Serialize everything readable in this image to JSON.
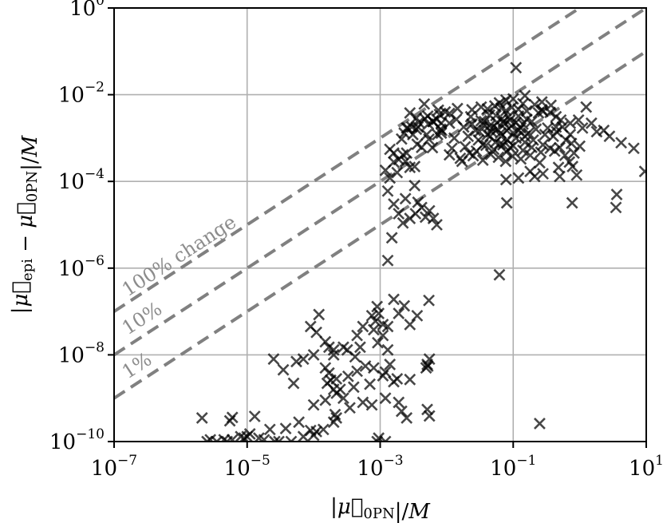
{
  "chart_data": {
    "type": "scatter",
    "x_scale": "log",
    "y_scale": "log",
    "xlim": [
      1e-07,
      10
    ],
    "ylim": [
      1e-10,
      1
    ],
    "grid": true,
    "marker": "x",
    "marker_color": "#000000",
    "reference_line_color": "#808080",
    "grid_color": "#b0b0b0",
    "xlabel": "|μ⃗0PN|/M",
    "ylabel": "|μ⃗epi − μ⃗0PN|/M",
    "x_ticks": [
      {
        "value": 1e-07,
        "base": "10",
        "exp": "−7"
      },
      {
        "value": 1e-05,
        "base": "10",
        "exp": "−5"
      },
      {
        "value": 0.001,
        "base": "10",
        "exp": "−3"
      },
      {
        "value": 0.1,
        "base": "10",
        "exp": "−1"
      },
      {
        "value": 10,
        "base": "10",
        "exp": "1"
      }
    ],
    "y_ticks": [
      {
        "value": 1e-10,
        "base": "10",
        "exp": "−10"
      },
      {
        "value": 1e-08,
        "base": "10",
        "exp": "−8"
      },
      {
        "value": 1e-06,
        "base": "10",
        "exp": "−6"
      },
      {
        "value": 0.0001,
        "base": "10",
        "exp": "−4"
      },
      {
        "value": 0.01,
        "base": "10",
        "exp": "−2"
      },
      {
        "value": 1,
        "base": "10",
        "exp": "0"
      }
    ],
    "reference_lines": [
      {
        "ratio": 1.0,
        "label": "100% change"
      },
      {
        "ratio": 0.1,
        "label": "10%"
      },
      {
        "ratio": 0.01,
        "label": "1%"
      }
    ],
    "points": [
      [
        0.0035,
        0.0029
      ],
      [
        0.0052,
        0.0032
      ],
      [
        0.0078,
        0.0035
      ],
      [
        0.0046,
        0.0061
      ],
      [
        0.0075,
        0.0044
      ],
      [
        0.0042,
        0.00061
      ],
      [
        0.0061,
        0.0006
      ],
      [
        0.0028,
        0.0038
      ],
      [
        0.003,
        0.0018
      ],
      [
        0.0053,
        0.0021
      ],
      [
        0.0036,
        0.00072
      ],
      [
        0.0021,
        0.00095
      ],
      [
        0.0031,
        0.0012
      ],
      [
        0.005,
        0.0012
      ],
      [
        0.0083,
        0.0013
      ],
      [
        0.0054,
        0.00094
      ],
      [
        0.0038,
        0.0023
      ],
      [
        0.0062,
        0.0024
      ],
      [
        0.0026,
        0.0017
      ],
      [
        0.0083,
        0.0022
      ],
      [
        0.0037,
        0.0018
      ],
      [
        0.0084,
        0.0015
      ],
      [
        0.0023,
        0.0013
      ],
      [
        0.0073,
        0.0012
      ],
      [
        0.0025,
        0.0017
      ],
      [
        0.0081,
        0.0016
      ],
      [
        0.0035,
        0.0016
      ],
      [
        0.0063,
        0.0024
      ],
      [
        0.0047,
        0.0028
      ],
      [
        0.0071,
        0.0027
      ],
      [
        0.0016,
        0.00028
      ],
      [
        0.0012,
        0.00018
      ],
      [
        0.0016,
        0.00045
      ],
      [
        0.0024,
        0.00029
      ],
      [
        0.0019,
        0.00032
      ],
      [
        0.0022,
        0.00041
      ],
      [
        0.0033,
        0.00022
      ],
      [
        0.0025,
        0.00045
      ],
      [
        0.0014,
        0.00055
      ],
      [
        0.0028,
        0.00021
      ],
      [
        0.014,
        0.0027
      ],
      [
        0.023,
        0.0031
      ],
      [
        0.033,
        0.0025
      ],
      [
        0.044,
        0.0034
      ],
      [
        0.055,
        0.0033
      ],
      [
        0.068,
        0.0028
      ],
      [
        0.085,
        0.0031
      ],
      [
        0.12,
        0.0032
      ],
      [
        0.16,
        0.0027
      ],
      [
        0.19,
        0.0024
      ],
      [
        0.011,
        0.0022
      ],
      [
        0.018,
        0.0018
      ],
      [
        0.027,
        0.0015
      ],
      [
        0.036,
        0.002
      ],
      [
        0.047,
        0.0014
      ],
      [
        0.058,
        0.0016
      ],
      [
        0.074,
        0.0021
      ],
      [
        0.094,
        0.0019
      ],
      [
        0.13,
        0.0017
      ],
      [
        0.17,
        0.0013
      ],
      [
        0.22,
        0.0016
      ],
      [
        0.3,
        0.0012
      ],
      [
        0.013,
        0.001
      ],
      [
        0.021,
        0.0011
      ],
      [
        0.03,
        0.0009
      ],
      [
        0.041,
        0.0012
      ],
      [
        0.054,
        0.0008
      ],
      [
        0.066,
        0.0011
      ],
      [
        0.082,
        0.0009
      ],
      [
        0.11,
        0.001
      ],
      [
        0.15,
        0.0008
      ],
      [
        0.2,
        0.0009
      ],
      [
        0.28,
        0.0007
      ],
      [
        0.4,
        0.0011
      ],
      [
        0.012,
        0.00058
      ],
      [
        0.019,
        0.00063
      ],
      [
        0.028,
        0.0005
      ],
      [
        0.039,
        0.00068
      ],
      [
        0.051,
        0.00055
      ],
      [
        0.063,
        0.00072
      ],
      [
        0.079,
        0.00048
      ],
      [
        0.1,
        0.00066
      ],
      [
        0.14,
        0.00052
      ],
      [
        0.19,
        0.00061
      ],
      [
        0.26,
        0.00047
      ],
      [
        0.36,
        0.00058
      ],
      [
        0.016,
        0.00034
      ],
      [
        0.025,
        0.00039
      ],
      [
        0.035,
        0.00031
      ],
      [
        0.046,
        0.00042
      ],
      [
        0.06,
        0.00036
      ],
      [
        0.077,
        0.00029
      ],
      [
        0.098,
        0.00038
      ],
      [
        0.13,
        0.00033
      ],
      [
        0.18,
        0.0004
      ],
      [
        0.25,
        0.00027
      ],
      [
        0.011,
        0.00041
      ],
      [
        0.017,
        0.00029
      ],
      [
        0.022,
        0.00045
      ],
      [
        0.031,
        0.0014
      ],
      [
        0.044,
        0.0019
      ],
      [
        0.057,
        0.0023
      ],
      [
        0.071,
        0.0024
      ],
      [
        0.089,
        0.0026
      ],
      [
        0.11,
        0.0023
      ],
      [
        0.14,
        0.0021
      ],
      [
        0.024,
        0.0021
      ],
      [
        0.037,
        0.0024
      ],
      [
        0.05,
        0.0018
      ],
      [
        0.065,
        0.0013
      ],
      [
        0.08,
        0.0015
      ],
      [
        0.1,
        0.0013
      ],
      [
        0.12,
        0.0015
      ],
      [
        0.15,
        0.0011
      ],
      [
        0.045,
        0.0011
      ],
      [
        0.07,
        0.0007
      ],
      [
        0.09,
        0.0006
      ],
      [
        0.035,
        0.0007
      ],
      [
        0.33,
        0.0017
      ],
      [
        0.45,
        0.0014
      ],
      [
        0.55,
        0.0018
      ],
      [
        0.62,
        0.0009
      ],
      [
        0.72,
        0.0012
      ],
      [
        0.5,
        0.0006
      ],
      [
        0.6,
        0.0004
      ],
      [
        0.42,
        0.0005
      ],
      [
        0.7,
        0.00028
      ],
      [
        0.78,
        0.00022
      ],
      [
        0.48,
        0.00021
      ],
      [
        0.0095,
        0.004
      ],
      [
        0.0145,
        0.0048
      ],
      [
        0.024,
        0.0045
      ],
      [
        0.033,
        0.0052
      ],
      [
        0.041,
        0.0047
      ],
      [
        0.053,
        0.0055
      ],
      [
        0.066,
        0.0049
      ],
      [
        0.078,
        0.0043
      ],
      [
        0.095,
        0.0051
      ],
      [
        0.12,
        0.0046
      ],
      [
        0.16,
        0.0042
      ],
      [
        0.011,
        0.0037
      ],
      [
        0.062,
        0.0065
      ],
      [
        0.078,
        0.0075
      ],
      [
        0.14,
        0.0062
      ],
      [
        0.1,
        0.008
      ],
      [
        0.21,
        0.0059
      ],
      [
        0.37,
        0.0057
      ],
      [
        0.11,
        0.042
      ],
      [
        0.15,
        0.0095
      ],
      [
        0.27,
        0.0068
      ],
      [
        0.36,
        0.0039
      ],
      [
        0.44,
        0.0031
      ],
      [
        0.27,
        0.0045
      ],
      [
        0.24,
        0.0038
      ],
      [
        0.28,
        0.0041
      ],
      [
        0.52,
        0.0026
      ],
      [
        0.44,
        0.0018
      ],
      [
        0.72,
        0.0022
      ],
      [
        0.96,
        0.0026
      ],
      [
        1.25,
        0.0052
      ],
      [
        1.1,
        0.0017
      ],
      [
        1.5,
        0.0022
      ],
      [
        1.8,
        0.0014
      ],
      [
        2.3,
        0.0015
      ],
      [
        2.8,
        0.0011
      ],
      [
        4.2,
        0.00078
      ],
      [
        6.5,
        0.00058
      ],
      [
        9.5,
        0.00017
      ],
      [
        0.75,
        0.00075
      ],
      [
        1.0,
        0.00065
      ],
      [
        0.82,
        0.00045
      ],
      [
        0.9,
        0.00014
      ],
      [
        3.6,
        5e-05
      ],
      [
        3.5,
        2.5e-05
      ],
      [
        0.77,
        3.2e-05
      ],
      [
        0.18,
        0.00017
      ],
      [
        0.21,
        0.00013
      ],
      [
        0.28,
        0.00015
      ],
      [
        0.12,
        0.00012
      ],
      [
        0.078,
        0.00011
      ],
      [
        0.5,
        0.00013
      ],
      [
        0.08,
        3.2e-05
      ],
      [
        0.062,
        7e-07
      ],
      [
        0.25,
        2.6e-10
      ],
      [
        0.0013,
        6e-05
      ],
      [
        0.0016,
        3e-05
      ],
      [
        0.0015,
        5e-06
      ],
      [
        0.0013,
        1.5e-06
      ],
      [
        0.0019,
        1.8e-05
      ],
      [
        0.0022,
        1.1e-05
      ],
      [
        0.0024,
        4e-05
      ],
      [
        0.0028,
        1.4e-05
      ],
      [
        0.0033,
        8e-05
      ],
      [
        0.0034,
        1.8e-05
      ],
      [
        0.0037,
        3.3e-05
      ],
      [
        0.0042,
        2.5e-05
      ],
      [
        0.0048,
        1.5e-05
      ],
      [
        0.0055,
        2.1e-05
      ],
      [
        0.0063,
        1.4e-05
      ],
      [
        0.0071,
        1e-05
      ],
      [
        0.0014,
        0.00012
      ],
      [
        0.0018,
        0.00016
      ],
      [
        0.0009,
        1.3e-07
      ],
      [
        0.00095,
        9e-08
      ],
      [
        0.0011,
        5e-08
      ],
      [
        0.00085,
        6e-08
      ],
      [
        0.00075,
        8e-08
      ],
      [
        0.0008,
        3.8e-08
      ],
      [
        0.0011,
        2.8e-08
      ],
      [
        0.00092,
        1.9e-08
      ],
      [
        0.0013,
        4.5e-08
      ],
      [
        0.0016,
        1.9e-07
      ],
      [
        0.0019,
        9e-08
      ],
      [
        0.0023,
        1.35e-07
      ],
      [
        0.0028,
        5e-08
      ],
      [
        0.0036,
        8e-08
      ],
      [
        0.0054,
        1.8e-07
      ],
      [
        0.0013,
        1.3e-08
      ],
      [
        0.0014,
        6e-09
      ],
      [
        0.0012,
        4e-09
      ],
      [
        0.00055,
        4.5e-08
      ],
      [
        0.00045,
        2.8e-08
      ],
      [
        0.0005,
        1.5e-08
      ],
      [
        0.00032,
        1.3e-08
      ],
      [
        0.00012,
        8.5e-08
      ],
      [
        9e-05,
        4.5e-08
      ],
      [
        0.00011,
        3.3e-08
      ],
      [
        0.00015,
        2e-08
      ],
      [
        0.0001,
        1e-08
      ],
      [
        0.00015,
        5e-09
      ],
      [
        0.0002,
        1.3e-08
      ],
      [
        0.00028,
        1.5e-08
      ],
      [
        0.00042,
        9e-09
      ],
      [
        0.00017,
        1.5e-08
      ],
      [
        7e-05,
        8e-09
      ],
      [
        0.0002,
        1e-08
      ],
      [
        2.5e-05,
        8e-09
      ],
      [
        5.5e-05,
        7e-09
      ],
      [
        3.5e-05,
        4.5e-09
      ],
      [
        5e-05,
        2.2e-09
      ],
      [
        0.00017,
        3.8e-09
      ],
      [
        0.00022,
        2.8e-09
      ],
      [
        0.00033,
        3.2e-09
      ],
      [
        0.00045,
        4.2e-09
      ],
      [
        0.0006,
        5.5e-09
      ],
      [
        0.0008,
        5e-09
      ],
      [
        0.0011,
        3.3e-09
      ],
      [
        0.0016,
        2.4e-09
      ],
      [
        0.00016,
        2.2e-09
      ],
      [
        0.00018,
        2.6e-09
      ],
      [
        0.0002,
        1.6e-09
      ],
      [
        0.00025,
        1.6e-09
      ],
      [
        0.0004,
        1.8e-09
      ],
      [
        0.0007,
        2.1e-09
      ],
      [
        0.0018,
        2.8e-09
      ],
      [
        0.0028,
        2.7e-09
      ],
      [
        0.0052,
        5.5e-09
      ],
      [
        0.0055,
        8e-09
      ],
      [
        0.0051,
        6e-09
      ],
      [
        0.0049,
        5e-09
      ],
      [
        0.00022,
        1.3e-09
      ],
      [
        0.00015,
        9e-10
      ],
      [
        0.0001,
        7e-10
      ],
      [
        0.00028,
        1e-09
      ],
      [
        0.00035,
        6e-10
      ],
      [
        0.00055,
        8e-10
      ],
      [
        0.00075,
        7e-10
      ],
      [
        0.0012,
        1e-09
      ],
      [
        0.0019,
        8e-10
      ],
      [
        0.0021,
        5e-10
      ],
      [
        0.0025,
        3.5e-10
      ],
      [
        0.0051,
        5.5e-10
      ],
      [
        0.0055,
        3.9e-10
      ],
      [
        0.00021,
        4.2e-10
      ],
      [
        0.0002,
        2.8e-10
      ],
      [
        0.00022,
        3.5e-10
      ],
      [
        0.00014,
        1.9e-10
      ],
      [
        0.00011,
        1.7e-10
      ],
      [
        9e-05,
        1.8e-10
      ],
      [
        6e-05,
        2.8e-10
      ],
      [
        4.6e-05,
        1e-10
      ],
      [
        3.8e-05,
        2e-10
      ],
      [
        3e-05,
        1e-10
      ],
      [
        2.6e-05,
        1e-10
      ],
      [
        1.3e-05,
        3.8e-10
      ],
      [
        1.5e-05,
        1.2e-10
      ],
      [
        1.8e-05,
        1.1e-10
      ],
      [
        2.2e-05,
        1.9e-10
      ],
      [
        8e-06,
        1.3e-10
      ],
      [
        6e-06,
        1.1e-10
      ],
      [
        5e-06,
        1e-10
      ],
      [
        4.5e-06,
        1.1e-10
      ],
      [
        3.5e-06,
        1e-10
      ],
      [
        2.8e-06,
        1.1e-10
      ],
      [
        2.5e-06,
        1e-10
      ],
      [
        9e-06,
        1.2e-10
      ],
      [
        1e-05,
        1.3e-10
      ],
      [
        1.1e-05,
        1.5e-10
      ],
      [
        6e-06,
        3.6e-10
      ],
      [
        5.5e-06,
        3e-10
      ],
      [
        2.1e-06,
        3.5e-10
      ],
      [
        7e-05,
        1.3e-10
      ],
      [
        0.0009,
        1e-10
      ],
      [
        0.0012,
        1e-10
      ],
      [
        0.00095,
        1.2e-10
      ],
      [
        0.0001,
        1.4e-10
      ]
    ]
  }
}
